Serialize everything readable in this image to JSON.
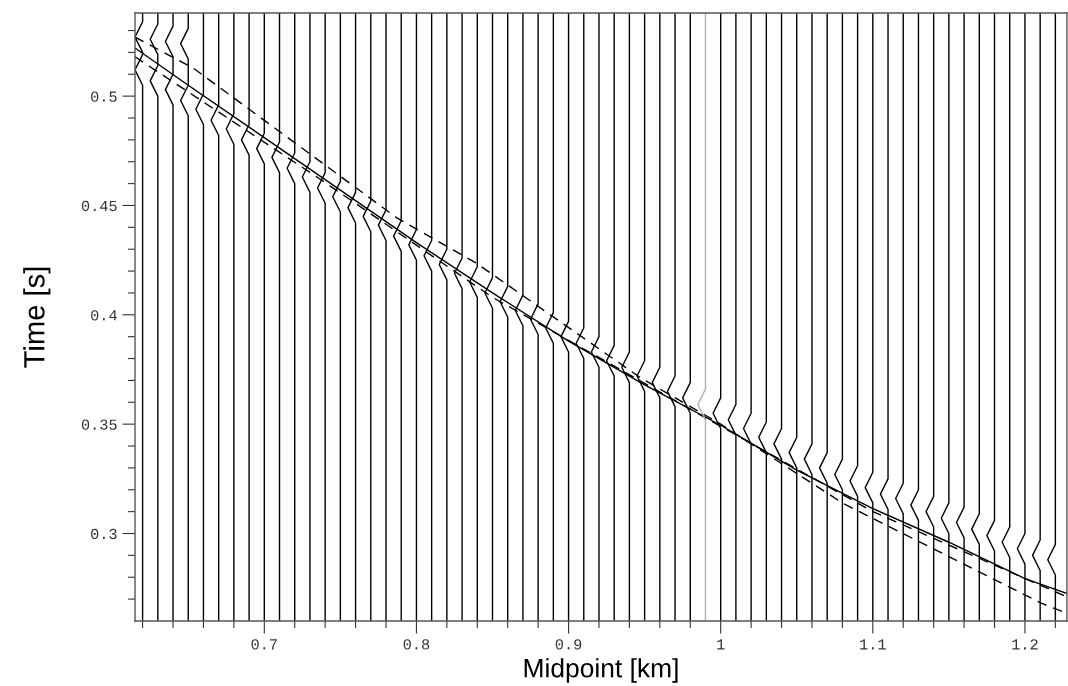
{
  "chart_data": {
    "type": "line",
    "xlabel": "Midpoint [km]",
    "ylabel": "Time [s]",
    "xlim": [
      0.615,
      1.2276
    ],
    "ylim": [
      0.26,
      0.538
    ],
    "xticks": [
      {
        "value": 0.62,
        "label": null
      },
      {
        "value": 0.64,
        "label": null
      },
      {
        "value": 0.66,
        "label": null
      },
      {
        "value": 0.68,
        "label": null
      },
      0.7,
      {
        "value": 0.72,
        "label": null
      },
      {
        "value": 0.74,
        "label": null
      },
      {
        "value": 0.76,
        "label": null
      },
      {
        "value": 0.78,
        "label": null
      },
      0.8,
      {
        "value": 0.82,
        "label": null
      },
      {
        "value": 0.84,
        "label": null
      },
      {
        "value": 0.86,
        "label": null
      },
      {
        "value": 0.88,
        "label": null
      },
      0.9,
      {
        "value": 0.92,
        "label": null
      },
      {
        "value": 0.94,
        "label": null
      },
      {
        "value": 0.96,
        "label": null
      },
      {
        "value": 0.98,
        "label": null
      },
      1,
      {
        "value": 1.02,
        "label": null
      },
      {
        "value": 1.04,
        "label": null
      },
      {
        "value": 1.06,
        "label": null
      },
      {
        "value": 1.08,
        "label": null
      },
      1.1,
      {
        "value": 1.12,
        "label": null
      },
      {
        "value": 1.14,
        "label": null
      },
      {
        "value": 1.16,
        "label": null
      },
      {
        "value": 1.18,
        "label": null
      },
      1.2,
      {
        "value": 1.22,
        "label": null
      }
    ],
    "yticks": [
      {
        "value": 0.27,
        "label": null
      },
      {
        "value": 0.28,
        "label": null
      },
      {
        "value": 0.29,
        "label": null
      },
      0.3,
      {
        "value": 0.31,
        "label": null
      },
      {
        "value": 0.32,
        "label": null
      },
      {
        "value": 0.33,
        "label": null
      },
      {
        "value": 0.34,
        "label": null
      },
      0.35,
      {
        "value": 0.36,
        "label": null
      },
      {
        "value": 0.37,
        "label": null
      },
      {
        "value": 0.38,
        "label": null
      },
      {
        "value": 0.39,
        "label": null
      },
      0.4,
      {
        "value": 0.41,
        "label": null
      },
      {
        "value": 0.42,
        "label": null
      },
      {
        "value": 0.43,
        "label": null
      },
      {
        "value": 0.44,
        "label": null
      },
      0.45,
      {
        "value": 0.46,
        "label": null
      },
      {
        "value": 0.47,
        "label": null
      },
      {
        "value": 0.48,
        "label": null
      },
      {
        "value": 0.49,
        "label": null
      },
      0.5,
      {
        "value": 0.51,
        "label": null
      },
      {
        "value": 0.52,
        "label": null
      },
      {
        "value": 0.53,
        "label": null
      }
    ],
    "grid": false,
    "series": [
      {
        "color": "#000000",
        "line_style": "solid",
        "x": [
          0.615,
          0.65,
          0.7,
          0.75,
          0.8,
          0.85,
          0.9,
          0.95,
          1.0,
          1.05,
          1.1,
          1.15,
          1.2,
          1.2276
        ],
        "values": [
          0.522,
          0.505,
          0.481,
          0.457,
          0.433,
          0.41,
          0.388,
          0.368,
          0.3495,
          0.329,
          0.3114,
          0.296,
          0.2794,
          0.2726
        ]
      },
      {
        "color": "#000000",
        "line_style": "dashed",
        "x": [
          0.615,
          0.6533,
          0.7874,
          0.8394,
          0.9473,
          1.0,
          1.0806,
          1.2112,
          1.2276
        ],
        "values": [
          0.527,
          0.5128,
          0.4442,
          0.4236,
          0.3712,
          0.35,
          0.3137,
          0.268,
          0.2635
        ]
      },
      {
        "color": "#000000",
        "line_style": "dashed",
        "x": [
          0.615,
          0.7368,
          0.85,
          1.0,
          1.1,
          1.2276
        ],
        "values": [
          0.518,
          0.462,
          0.408,
          0.349,
          0.31,
          0.271
        ]
      },
      {
        "color": "#000000",
        "x": [
          0.62,
          0.62,
          0.615,
          0.62,
          0.62,
          0.615,
          0.62,
          0.62
        ],
        "values": [
          0.538,
          0.534,
          0.527,
          0.52,
          0.519,
          0.512,
          0.505,
          0.26
        ]
      },
      {
        "color": "#000000",
        "x": [
          0.63,
          0.63,
          0.625,
          0.63,
          0.63,
          0.625,
          0.63,
          0.63
        ],
        "values": [
          0.538,
          0.533,
          0.526,
          0.519,
          0.514,
          0.507,
          0.5,
          0.26
        ]
      },
      {
        "color": "#000000",
        "x": [
          0.64,
          0.64,
          0.635,
          0.64,
          0.64,
          0.635,
          0.64,
          0.64
        ],
        "values": [
          0.538,
          0.532,
          0.525,
          0.518,
          0.51,
          0.503,
          0.496,
          0.26
        ]
      },
      {
        "color": "#000000",
        "x": [
          0.65,
          0.65,
          0.645,
          0.65,
          0.65,
          0.645,
          0.65,
          0.65
        ],
        "values": [
          0.538,
          0.531,
          0.524,
          0.517,
          0.505,
          0.498,
          0.491,
          0.26
        ]
      },
      {
        "color": "#000000",
        "x": [
          0.66,
          0.66,
          0.655,
          0.66,
          0.66
        ],
        "values": [
          0.538,
          0.501,
          0.494,
          0.487,
          0.26
        ]
      },
      {
        "color": "#000000",
        "x": [
          0.67,
          0.67,
          0.665,
          0.67,
          0.67
        ],
        "values": [
          0.538,
          0.496,
          0.489,
          0.482,
          0.26
        ]
      },
      {
        "color": "#000000",
        "x": [
          0.68,
          0.68,
          0.675,
          0.68,
          0.68
        ],
        "values": [
          0.538,
          0.492,
          0.485,
          0.478,
          0.26
        ]
      },
      {
        "color": "#000000",
        "x": [
          0.69,
          0.69,
          0.685,
          0.69,
          0.69
        ],
        "values": [
          0.538,
          0.487,
          0.48,
          0.473,
          0.26
        ]
      },
      {
        "color": "#000000",
        "x": [
          0.7,
          0.7,
          0.695,
          0.7,
          0.7
        ],
        "values": [
          0.538,
          0.483,
          0.476,
          0.469,
          0.26
        ]
      },
      {
        "color": "#000000",
        "x": [
          0.71,
          0.71,
          0.705,
          0.71,
          0.71
        ],
        "values": [
          0.538,
          0.479,
          0.472,
          0.465,
          0.26
        ]
      },
      {
        "color": "#000000",
        "x": [
          0.72,
          0.72,
          0.715,
          0.72,
          0.72
        ],
        "values": [
          0.538,
          0.474,
          0.467,
          0.46,
          0.26
        ]
      },
      {
        "color": "#000000",
        "x": [
          0.73,
          0.73,
          0.725,
          0.73,
          0.73
        ],
        "values": [
          0.538,
          0.47,
          0.463,
          0.456,
          0.26
        ]
      },
      {
        "color": "#000000",
        "x": [
          0.74,
          0.74,
          0.735,
          0.74,
          0.74
        ],
        "values": [
          0.538,
          0.465,
          0.458,
          0.451,
          0.26
        ]
      },
      {
        "color": "#000000",
        "x": [
          0.75,
          0.75,
          0.745,
          0.75,
          0.75
        ],
        "values": [
          0.538,
          0.461,
          0.454,
          0.447,
          0.26
        ]
      },
      {
        "color": "#000000",
        "x": [
          0.76,
          0.76,
          0.755,
          0.76,
          0.76
        ],
        "values": [
          0.538,
          0.456,
          0.449,
          0.442,
          0.26
        ]
      },
      {
        "color": "#000000",
        "x": [
          0.77,
          0.77,
          0.765,
          0.77,
          0.77
        ],
        "values": [
          0.538,
          0.452,
          0.445,
          0.438,
          0.26
        ]
      },
      {
        "color": "#000000",
        "x": [
          0.78,
          0.78,
          0.775,
          0.78,
          0.78
        ],
        "values": [
          0.538,
          0.448,
          0.441,
          0.434,
          0.26
        ]
      },
      {
        "color": "#000000",
        "x": [
          0.79,
          0.79,
          0.785,
          0.79,
          0.79
        ],
        "values": [
          0.538,
          0.443,
          0.436,
          0.429,
          0.26
        ]
      },
      {
        "color": "#000000",
        "x": [
          0.8,
          0.8,
          0.795,
          0.8,
          0.8
        ],
        "values": [
          0.538,
          0.439,
          0.432,
          0.425,
          0.26
        ]
      },
      {
        "color": "#000000",
        "x": [
          0.81,
          0.81,
          0.805,
          0.81,
          0.81
        ],
        "values": [
          0.538,
          0.434,
          0.427,
          0.42,
          0.26
        ]
      },
      {
        "color": "#000000",
        "x": [
          0.82,
          0.82,
          0.815,
          0.82,
          0.82
        ],
        "values": [
          0.538,
          0.43,
          0.423,
          0.416,
          0.26
        ]
      },
      {
        "color": "#000000",
        "x": [
          0.83,
          0.83,
          0.825,
          0.83,
          0.83
        ],
        "values": [
          0.538,
          0.426,
          0.419,
          0.412,
          0.26
        ]
      },
      {
        "color": "#000000",
        "x": [
          0.84,
          0.84,
          0.835,
          0.84,
          0.84
        ],
        "values": [
          0.538,
          0.422,
          0.415,
          0.408,
          0.26
        ]
      },
      {
        "color": "#000000",
        "x": [
          0.85,
          0.85,
          0.845,
          0.85,
          0.85
        ],
        "values": [
          0.538,
          0.417,
          0.41,
          0.403,
          0.26
        ]
      },
      {
        "color": "#000000",
        "x": [
          0.86,
          0.86,
          0.855,
          0.86,
          0.86
        ],
        "values": [
          0.538,
          0.413,
          0.406,
          0.399,
          0.26
        ]
      },
      {
        "color": "#000000",
        "x": [
          0.87,
          0.87,
          0.865,
          0.87,
          0.87
        ],
        "values": [
          0.538,
          0.409,
          0.402,
          0.395,
          0.26
        ]
      },
      {
        "color": "#000000",
        "x": [
          0.88,
          0.88,
          0.875,
          0.88,
          0.88
        ],
        "values": [
          0.538,
          0.405,
          0.398,
          0.391,
          0.26
        ]
      },
      {
        "color": "#000000",
        "x": [
          0.89,
          0.89,
          0.885,
          0.89,
          0.89
        ],
        "values": [
          0.538,
          0.401,
          0.394,
          0.387,
          0.26
        ]
      },
      {
        "color": "#000000",
        "x": [
          0.9,
          0.9,
          0.895,
          0.9,
          0.9
        ],
        "values": [
          0.538,
          0.397,
          0.39,
          0.383,
          0.26
        ]
      },
      {
        "color": "#000000",
        "x": [
          0.91,
          0.91,
          0.905,
          0.91,
          0.91
        ],
        "values": [
          0.538,
          0.394,
          0.387,
          0.38,
          0.26
        ]
      },
      {
        "color": "#000000",
        "x": [
          0.92,
          0.92,
          0.915,
          0.92,
          0.92
        ],
        "values": [
          0.538,
          0.39,
          0.383,
          0.376,
          0.26
        ]
      },
      {
        "color": "#000000",
        "x": [
          0.93,
          0.93,
          0.925,
          0.93,
          0.93
        ],
        "values": [
          0.538,
          0.386,
          0.379,
          0.372,
          0.26
        ]
      },
      {
        "color": "#000000",
        "x": [
          0.94,
          0.94,
          0.935,
          0.94,
          0.94
        ],
        "values": [
          0.538,
          0.383,
          0.376,
          0.369,
          0.26
        ]
      },
      {
        "color": "#000000",
        "x": [
          0.95,
          0.95,
          0.945,
          0.95,
          0.95
        ],
        "values": [
          0.538,
          0.379,
          0.372,
          0.365,
          0.26
        ]
      },
      {
        "color": "#000000",
        "x": [
          0.96,
          0.96,
          0.955,
          0.96,
          0.96
        ],
        "values": [
          0.538,
          0.376,
          0.369,
          0.362,
          0.26
        ]
      },
      {
        "color": "#000000",
        "x": [
          0.97,
          0.97,
          0.965,
          0.97,
          0.97
        ],
        "values": [
          0.538,
          0.372,
          0.365,
          0.358,
          0.26
        ]
      },
      {
        "color": "#000000",
        "x": [
          0.98,
          0.98,
          0.975,
          0.98,
          0.98
        ],
        "values": [
          0.538,
          0.369,
          0.362,
          0.355,
          0.26
        ]
      },
      {
        "color": "#b0b0b0",
        "x": [
          0.99,
          0.99,
          0.985,
          0.99,
          0.99
        ],
        "values": [
          0.538,
          0.366,
          0.359,
          0.352,
          0.26
        ]
      },
      {
        "color": "#000000",
        "x": [
          1.0,
          1.0,
          0.995,
          1.0,
          1.0
        ],
        "values": [
          0.538,
          0.362,
          0.355,
          0.348,
          0.26
        ]
      },
      {
        "color": "#000000",
        "x": [
          1.01,
          1.01,
          1.005,
          1.01,
          1.01
        ],
        "values": [
          0.538,
          0.359,
          0.352,
          0.345,
          0.26
        ]
      },
      {
        "color": "#000000",
        "x": [
          1.02,
          1.02,
          1.015,
          1.02,
          1.02
        ],
        "values": [
          0.538,
          0.355,
          0.348,
          0.341,
          0.26
        ]
      },
      {
        "color": "#000000",
        "x": [
          1.03,
          1.03,
          1.025,
          1.03,
          1.03
        ],
        "values": [
          0.538,
          0.351,
          0.344,
          0.337,
          0.26
        ]
      },
      {
        "color": "#000000",
        "x": [
          1.04,
          1.04,
          1.035,
          1.04,
          1.04
        ],
        "values": [
          0.538,
          0.348,
          0.341,
          0.334,
          0.26
        ]
      },
      {
        "color": "#000000",
        "x": [
          1.05,
          1.05,
          1.045,
          1.05,
          1.05
        ],
        "values": [
          0.538,
          0.344,
          0.337,
          0.33,
          0.26
        ]
      },
      {
        "color": "#000000",
        "x": [
          1.06,
          1.06,
          1.055,
          1.06,
          1.06
        ],
        "values": [
          0.538,
          0.341,
          0.334,
          0.327,
          0.26
        ]
      },
      {
        "color": "#000000",
        "x": [
          1.07,
          1.07,
          1.065,
          1.07,
          1.07
        ],
        "values": [
          0.538,
          0.337,
          0.33,
          0.323,
          0.26
        ]
      },
      {
        "color": "#000000",
        "x": [
          1.08,
          1.08,
          1.075,
          1.08,
          1.08
        ],
        "values": [
          0.538,
          0.334,
          0.327,
          0.32,
          0.26
        ]
      },
      {
        "color": "#000000",
        "x": [
          1.09,
          1.09,
          1.085,
          1.09,
          1.09
        ],
        "values": [
          0.538,
          0.331,
          0.324,
          0.317,
          0.26
        ]
      },
      {
        "color": "#000000",
        "x": [
          1.1,
          1.1,
          1.095,
          1.1,
          1.1
        ],
        "values": [
          0.538,
          0.328,
          0.321,
          0.314,
          0.26
        ]
      },
      {
        "color": "#000000",
        "x": [
          1.11,
          1.11,
          1.105,
          1.11,
          1.11
        ],
        "values": [
          0.538,
          0.325,
          0.318,
          0.311,
          0.26
        ]
      },
      {
        "color": "#000000",
        "x": [
          1.12,
          1.12,
          1.115,
          1.12,
          1.12
        ],
        "values": [
          0.538,
          0.323,
          0.316,
          0.309,
          0.26
        ]
      },
      {
        "color": "#000000",
        "x": [
          1.13,
          1.13,
          1.125,
          1.13,
          1.13
        ],
        "values": [
          0.538,
          0.32,
          0.313,
          0.306,
          0.26
        ]
      },
      {
        "color": "#000000",
        "x": [
          1.14,
          1.14,
          1.135,
          1.14,
          1.14
        ],
        "values": [
          0.538,
          0.317,
          0.31,
          0.303,
          0.26
        ]
      },
      {
        "color": "#000000",
        "x": [
          1.15,
          1.15,
          1.145,
          1.15,
          1.15
        ],
        "values": [
          0.538,
          0.314,
          0.307,
          0.3,
          0.26
        ]
      },
      {
        "color": "#000000",
        "x": [
          1.16,
          1.16,
          1.155,
          1.16,
          1.16
        ],
        "values": [
          0.538,
          0.312,
          0.305,
          0.298,
          0.26
        ]
      },
      {
        "color": "#000000",
        "x": [
          1.17,
          1.17,
          1.165,
          1.17,
          1.17
        ],
        "values": [
          0.538,
          0.309,
          0.302,
          0.295,
          0.26
        ]
      },
      {
        "color": "#000000",
        "x": [
          1.18,
          1.18,
          1.175,
          1.18,
          1.18
        ],
        "values": [
          0.538,
          0.306,
          0.299,
          0.292,
          0.26
        ]
      },
      {
        "color": "#000000",
        "x": [
          1.19,
          1.19,
          1.185,
          1.19,
          1.19
        ],
        "values": [
          0.538,
          0.303,
          0.296,
          0.289,
          0.26
        ]
      },
      {
        "color": "#000000",
        "x": [
          1.2,
          1.2,
          1.195,
          1.2,
          1.2
        ],
        "values": [
          0.538,
          0.3,
          0.293,
          0.286,
          0.26
        ]
      },
      {
        "color": "#000000",
        "x": [
          1.21,
          1.21,
          1.205,
          1.21,
          1.21
        ],
        "values": [
          0.538,
          0.297,
          0.29,
          0.283,
          0.26
        ]
      },
      {
        "color": "#000000",
        "x": [
          1.22,
          1.22,
          1.215,
          1.22,
          1.22
        ],
        "values": [
          0.538,
          0.295,
          0.288,
          0.281,
          0.26
        ]
      }
    ]
  }
}
